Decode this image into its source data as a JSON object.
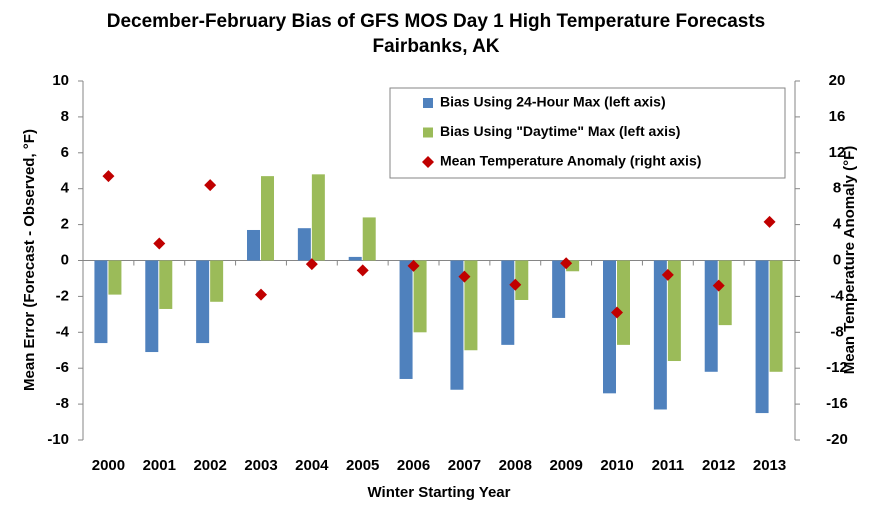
{
  "chart_data": {
    "type": "bar",
    "title": "December-February Bias of GFS MOS Day 1 High Temperature Forecasts",
    "subtitle": "Fairbanks, AK",
    "x_label": "Winter Starting Year",
    "y_label": "Mean Error (Forecast - Observed, °F)",
    "y2_label": "Mean Temperature Anomaly (°F)",
    "categories": [
      "2000",
      "2001",
      "2002",
      "2003",
      "2004",
      "2005",
      "2006",
      "2007",
      "2008",
      "2009",
      "2010",
      "2011",
      "2012",
      "2013"
    ],
    "series": [
      {
        "name": "Bias Using 24-Hour Max (left axis)",
        "type": "bar",
        "color": "#4f81bd",
        "values": [
          -4.6,
          -5.1,
          -4.6,
          1.7,
          1.8,
          0.2,
          -6.6,
          -7.2,
          -4.7,
          -3.2,
          -7.4,
          -8.3,
          -6.2,
          -8.5
        ]
      },
      {
        "name": "Bias Using \"Daytime\" Max (left axis)",
        "type": "bar",
        "color": "#9bbb59",
        "values": [
          -1.9,
          -2.7,
          -2.3,
          4.7,
          4.8,
          2.4,
          -4.0,
          -5.0,
          -2.2,
          -0.6,
          -4.7,
          -5.6,
          -3.6,
          -6.2
        ]
      },
      {
        "name": "Mean Temperature Anomaly (right axis)",
        "type": "scatter",
        "axis": "y2",
        "color": "#c00000",
        "values": [
          9.4,
          1.9,
          8.4,
          -3.8,
          -0.4,
          -1.1,
          -0.6,
          -1.8,
          -2.7,
          -0.3,
          -5.8,
          -1.6,
          -2.8,
          4.3
        ]
      }
    ],
    "ylim": [
      -10,
      10
    ],
    "yticks": [
      -10,
      -8,
      -6,
      -4,
      -2,
      0,
      2,
      4,
      6,
      8,
      10
    ],
    "y2lim": [
      -20,
      20
    ],
    "y2ticks": [
      -20,
      -16,
      -12,
      -8,
      -4,
      0,
      4,
      8,
      12,
      16,
      20
    ],
    "grid": false,
    "legend": "upper right"
  }
}
